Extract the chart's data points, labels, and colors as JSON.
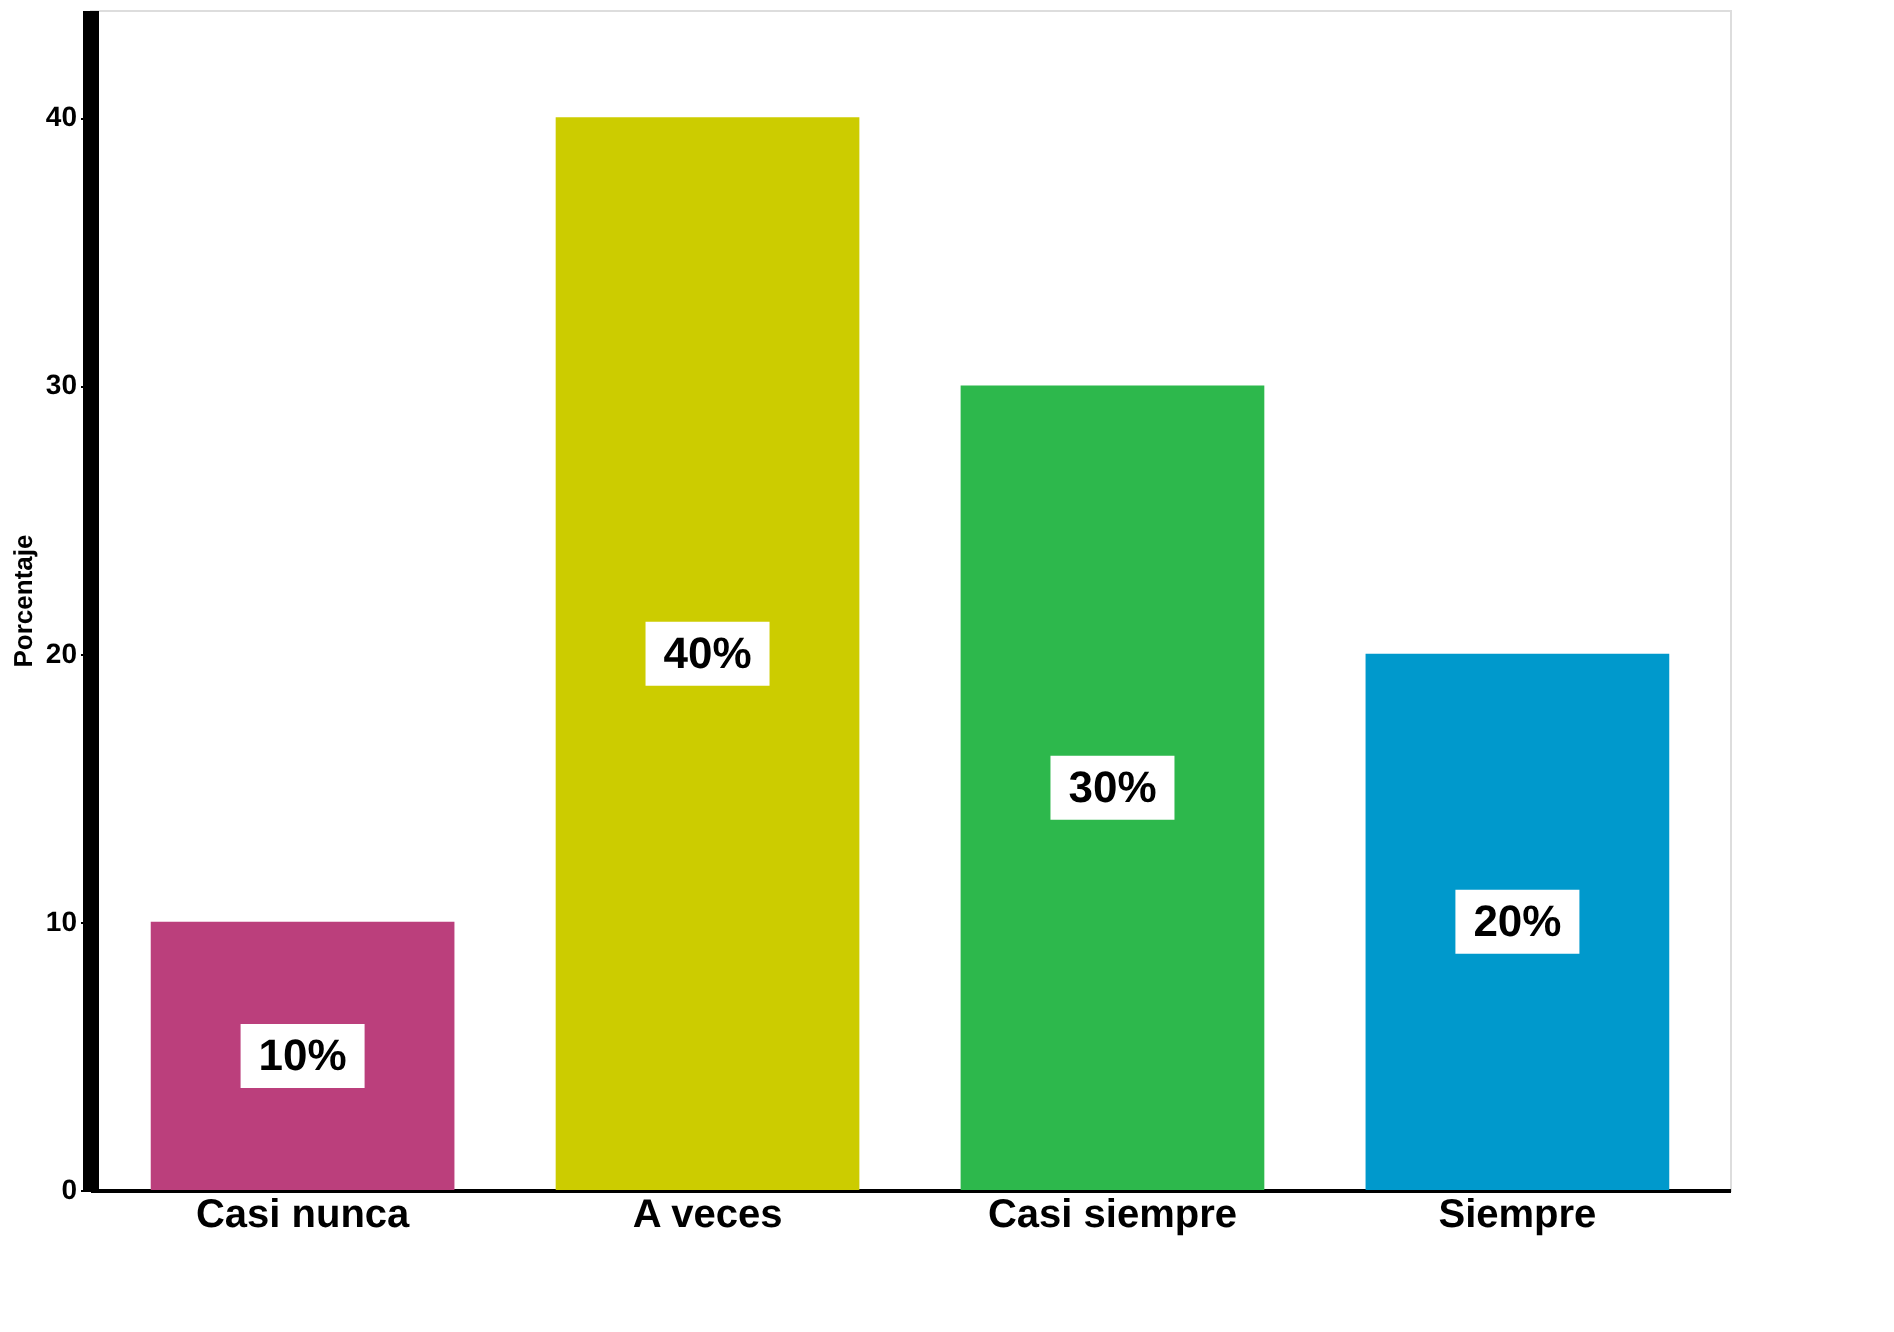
{
  "chart_data": {
    "type": "bar",
    "ylabel": "Porcentaje",
    "categories": [
      "Casi nunca",
      "A veces",
      "Casi siempre",
      "Siempre"
    ],
    "values": [
      10,
      40,
      30,
      20
    ],
    "colors": [
      "#bb3f7c",
      "#cccc00",
      "#2db84c",
      "#0099cc"
    ],
    "value_labels": [
      "10%",
      "40%",
      "30%",
      "20%"
    ],
    "ylim": [
      0,
      44
    ],
    "yticks": [
      0,
      10,
      20,
      30,
      40
    ],
    "grid": false,
    "legend": false
  }
}
